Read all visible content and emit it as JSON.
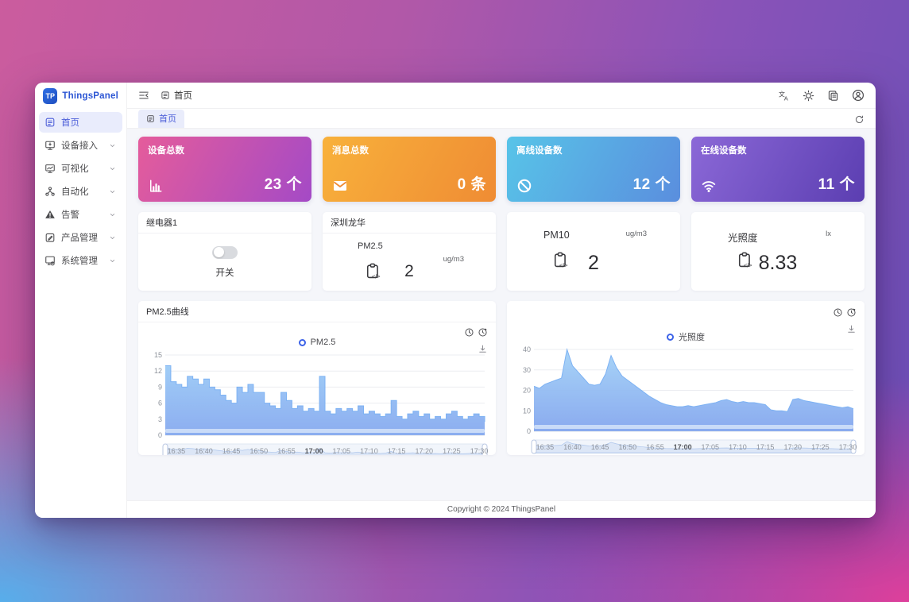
{
  "sidebar": {
    "logo_text": "ThingsPanel",
    "logo_glyph": "TP",
    "items": [
      {
        "label": "首页",
        "icon": "dashboard-icon",
        "active": true,
        "chevron": false
      },
      {
        "label": "设备接入",
        "icon": "device-access-icon",
        "active": false,
        "chevron": true
      },
      {
        "label": "可视化",
        "icon": "visualization-icon",
        "active": false,
        "chevron": true
      },
      {
        "label": "自动化",
        "icon": "automation-icon",
        "active": false,
        "chevron": true
      },
      {
        "label": "告警",
        "icon": "alarm-icon",
        "active": false,
        "chevron": true
      },
      {
        "label": "产品管理",
        "icon": "product-icon",
        "active": false,
        "chevron": true
      },
      {
        "label": "系统管理",
        "icon": "system-icon",
        "active": false,
        "chevron": true
      }
    ]
  },
  "topbar": {
    "breadcrumb": "首页"
  },
  "tabbar": {
    "active_tab": "首页"
  },
  "stats": [
    {
      "title": "设备总数",
      "value": "23 个",
      "icon": "bar-chart-icon",
      "gradient": [
        "#e55c9b",
        "#a44ac6"
      ]
    },
    {
      "title": "消息总数",
      "value": "0 条",
      "icon": "mail-icon",
      "gradient": [
        "#f8b13b",
        "#ef8c34"
      ]
    },
    {
      "title": "离线设备数",
      "value": "12 个",
      "icon": "ban-icon",
      "gradient": [
        "#58c4e8",
        "#5a8ede"
      ]
    },
    {
      "title": "在线设备数",
      "value": "11 个",
      "icon": "wifi-icon",
      "gradient": [
        "#8b68d7",
        "#5b3eb1"
      ]
    }
  ],
  "widgets": {
    "relay": {
      "title": "继电器1",
      "switch_label": "开关",
      "switch_on": false
    },
    "sensors": [
      {
        "header": "深圳龙华",
        "name": "PM2.5",
        "value": "2",
        "unit": "ug/m3"
      },
      {
        "header": null,
        "name": "PM10",
        "value": "2",
        "unit": "ug/m3"
      },
      {
        "header": null,
        "name": "光照度",
        "value": "8.33",
        "unit": "lx"
      }
    ]
  },
  "chart_data": [
    {
      "type": "area",
      "title": "PM2.5曲线",
      "legend": "PM2.5",
      "step": true,
      "ylim": [
        0,
        15
      ],
      "yticks": [
        0,
        3,
        6,
        9,
        12,
        15
      ],
      "x_start": "16:33",
      "x_end": "17:31",
      "x_interval_minutes": 1,
      "xticks": [
        "16:35",
        "16:40",
        "16:45",
        "16:50",
        "16:55",
        "17:00",
        "17:05",
        "17:10",
        "17:15",
        "17:20",
        "17:25",
        "17:30"
      ],
      "values": [
        13,
        10,
        9.5,
        9,
        11,
        10.5,
        9.5,
        10.5,
        9,
        8.5,
        7.5,
        6.5,
        6,
        9,
        8,
        9.5,
        8,
        8,
        6,
        5.5,
        5,
        8,
        6.5,
        5,
        5.5,
        4.5,
        5,
        4.5,
        11,
        4.5,
        4,
        5,
        4.5,
        5,
        4.5,
        5.5,
        4,
        4.5,
        4,
        3.5,
        4,
        6.5,
        3.5,
        3,
        4,
        4.5,
        3.5,
        4,
        3,
        3.5,
        3,
        4,
        4.5,
        3.5,
        3,
        3.5,
        4,
        3.5,
        2.5
      ],
      "colors": {
        "line": "#7db2f3",
        "fill_top": "#9bcaf6",
        "fill_bottom": "#86a9ef"
      }
    },
    {
      "type": "area",
      "title": null,
      "legend": "光照度",
      "step": false,
      "ylim": [
        0,
        40
      ],
      "yticks": [
        0,
        10,
        20,
        30,
        40
      ],
      "x_start": "16:33",
      "x_end": "17:31",
      "x_interval_minutes": 1,
      "xticks": [
        "16:35",
        "16:40",
        "16:45",
        "16:50",
        "16:55",
        "17:00",
        "17:05",
        "17:10",
        "17:15",
        "17:20",
        "17:25",
        "17:30"
      ],
      "values": [
        22,
        21,
        23,
        24,
        25,
        26,
        40,
        32,
        29,
        26,
        23,
        22.5,
        23,
        28,
        37,
        31,
        27,
        25,
        23,
        21,
        19,
        17,
        15.5,
        14,
        13,
        12.5,
        12,
        12,
        12.5,
        12,
        12.5,
        13,
        13.5,
        14,
        15,
        15.5,
        14.5,
        14,
        14.5,
        14,
        14,
        13.5,
        13,
        10.5,
        10,
        10,
        9.5,
        15.5,
        16,
        15,
        14.5,
        14,
        13.5,
        13,
        12.5,
        12,
        11.5,
        12,
        11
      ],
      "colors": {
        "line": "#7db2f3",
        "fill_top": "#a3d2f7",
        "fill_bottom": "#84a6ee"
      }
    }
  ],
  "footer": {
    "copyright": "Copyright © 2024 ThingsPanel"
  }
}
